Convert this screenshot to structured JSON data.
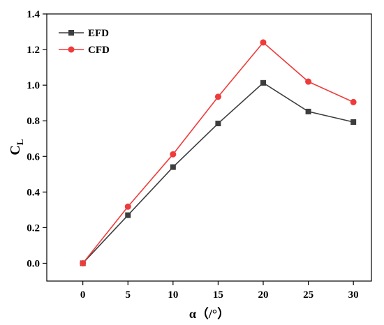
{
  "chart_data": {
    "type": "line",
    "x": [
      0,
      5,
      10,
      15,
      20,
      25,
      30
    ],
    "xticks": [
      "0",
      "5",
      "10",
      "15",
      "20",
      "25",
      "30"
    ],
    "xlim": [
      -4,
      32
    ],
    "yticks": [
      "0.0",
      "0.2",
      "0.4",
      "0.6",
      "0.8",
      "1.0",
      "1.2",
      "1.4"
    ],
    "ylim": [
      -0.1,
      1.4
    ],
    "xlabel": "α（/°）",
    "ylabel_main": "C",
    "ylabel_sub": "L",
    "grid": false,
    "legend_position": "top-left",
    "series": [
      {
        "name": "EFD",
        "color": "#3d3d3d",
        "marker": "square",
        "values": [
          0.0,
          0.27,
          0.54,
          0.785,
          1.013,
          0.852,
          0.793
        ]
      },
      {
        "name": "CFD",
        "color": "#ee3b3b",
        "marker": "circle",
        "values": [
          0.0,
          0.318,
          0.612,
          0.935,
          1.24,
          1.02,
          0.905
        ]
      }
    ]
  }
}
